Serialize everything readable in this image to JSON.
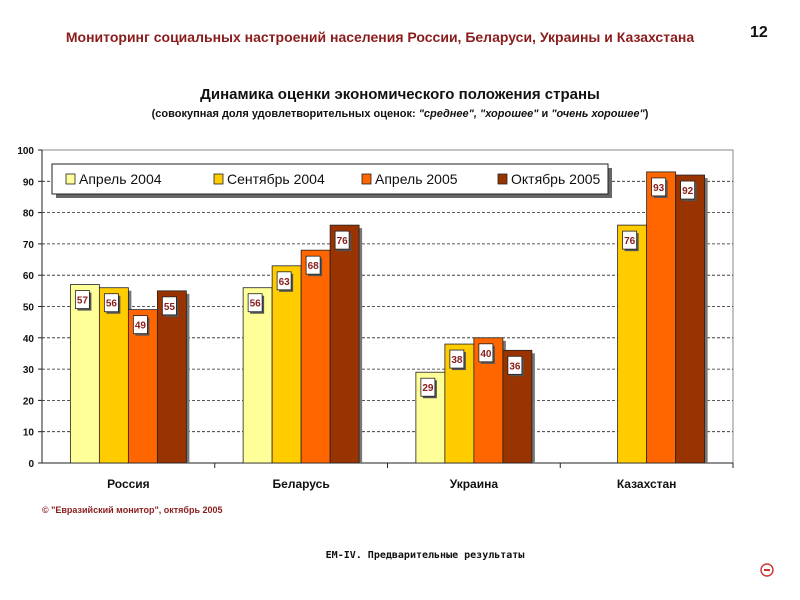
{
  "header": {
    "title": "Мониторинг социальных настроений населения России, Беларуси, Украины и Казахстана",
    "page_number": "12"
  },
  "chart_data": {
    "type": "bar",
    "title": "Динамика оценки экономического положения страны",
    "subtitle_prefix": "(совокупная доля удовлетворительных оценок: ",
    "subtitle_italic": "\"среднее\", \"хорошее\"",
    "subtitle_mid": " и ",
    "subtitle_italic2": "\"очень хорошее\"",
    "subtitle_suffix": ")",
    "categories": [
      "Россия",
      "Беларусь",
      "Украина",
      "Казахстан"
    ],
    "ylim": [
      0,
      100
    ],
    "yticks": [
      0,
      10,
      20,
      30,
      40,
      50,
      60,
      70,
      80,
      90,
      100
    ],
    "legend_position": "top",
    "series": [
      {
        "name": "Апрель 2004",
        "color": "#ffff99",
        "values": [
          57,
          56,
          29,
          null
        ],
        "labels": [
          "57",
          "56",
          "29",
          ""
        ]
      },
      {
        "name": "Сентябрь 2004",
        "color": "#ffcc00",
        "values": [
          56,
          63,
          38,
          76
        ],
        "labels": [
          "56",
          "63",
          "38",
          "76"
        ]
      },
      {
        "name": "Апрель 2005",
        "color": "#ff6600",
        "values": [
          49,
          68,
          40,
          93
        ],
        "labels": [
          "49",
          "68",
          "40",
          "93"
        ]
      },
      {
        "name": "Октябрь 2005",
        "color": "#993300",
        "values": [
          55,
          76,
          36,
          92
        ],
        "labels": [
          "55",
          "76",
          "36",
          "92"
        ]
      }
    ]
  },
  "footer": {
    "copyright": "© \"Евразийский монитор\", октябрь 2005",
    "note": "EM-IV.  Предварительные  результаты"
  },
  "colors": {
    "accent": "#8b1c1c",
    "plot_background": "#ffffff",
    "label_text": "#8b1c1c"
  },
  "icons": {
    "emblem": "circle-emblem-icon"
  }
}
